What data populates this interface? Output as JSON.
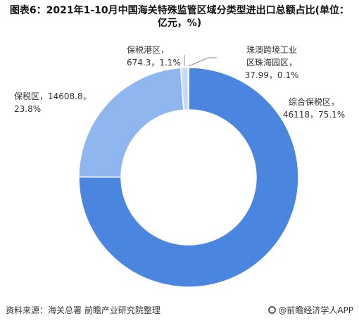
{
  "chart_data": {
    "type": "pie",
    "title": "图表6：2021年1-10月中国海关特殊监管区域分类型进出口总额占比(单位：亿元，%)",
    "hole": true,
    "colors": [
      "#4a86e0",
      "#8fb6ee",
      "#c7d9f5",
      "#6f9fe6"
    ],
    "slices": [
      {
        "name": "综合保税区",
        "value": 46118,
        "percent": 75.1,
        "label_lines": [
          "综合保税区，",
          "46118，75.1%"
        ]
      },
      {
        "name": "保税区",
        "value": 14608.8,
        "percent": 23.8,
        "label_lines": [
          "保税区，14608.8，",
          "23.8%"
        ]
      },
      {
        "name": "保税港区",
        "value": 674.3,
        "percent": 1.1,
        "label_lines": [
          "保税港区，",
          "674.3，1.1%"
        ]
      },
      {
        "name": "珠澳跨境工业区珠海园区",
        "value": 37.99,
        "percent": 0.1,
        "label_lines": [
          "珠澳跨境工业",
          "区珠海园区，",
          "37.99，0.1%"
        ]
      }
    ]
  },
  "footer": {
    "source": "资料来源：海关总署 前瞻产业研究院整理",
    "brand": "@前瞻经济学人APP"
  }
}
